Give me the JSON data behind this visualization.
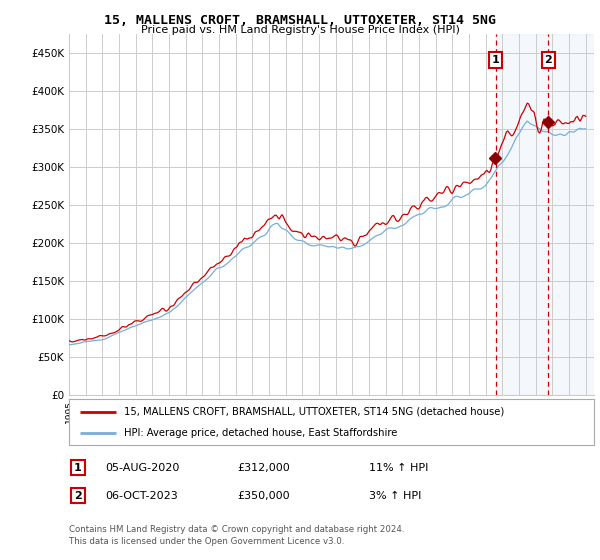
{
  "title": "15, MALLENS CROFT, BRAMSHALL, UTTOXETER, ST14 5NG",
  "subtitle": "Price paid vs. HM Land Registry's House Price Index (HPI)",
  "ylabel_ticks": [
    "£0",
    "£50K",
    "£100K",
    "£150K",
    "£200K",
    "£250K",
    "£300K",
    "£350K",
    "£400K",
    "£450K"
  ],
  "ytick_values": [
    0,
    50000,
    100000,
    150000,
    200000,
    250000,
    300000,
    350000,
    400000,
    450000
  ],
  "ylim": [
    0,
    475000
  ],
  "xlim_start": 1995.0,
  "xlim_end": 2026.5,
  "legend_line1": "15, MALLENS CROFT, BRAMSHALL, UTTOXETER, ST14 5NG (detached house)",
  "legend_line2": "HPI: Average price, detached house, East Staffordshire",
  "sale1_date": "05-AUG-2020",
  "sale1_price": "£312,000",
  "sale1_hpi": "11% ↑ HPI",
  "sale1_x": 2020.6,
  "sale1_y": 312000,
  "sale2_date": "06-OCT-2023",
  "sale2_price": "£350,000",
  "sale2_hpi": "3% ↑ HPI",
  "sale2_x": 2023.77,
  "sale2_y": 350000,
  "copyright_text": "Contains HM Land Registry data © Crown copyright and database right 2024.\nThis data is licensed under the Open Government Licence v3.0.",
  "line_color_red": "#cc0000",
  "line_color_blue": "#7aaddb",
  "vline_color": "#cc0000",
  "background_color": "#ffffff",
  "grid_color": "#cccccc",
  "shading_color": "#ddeeff",
  "marker_color": "#8b0000"
}
